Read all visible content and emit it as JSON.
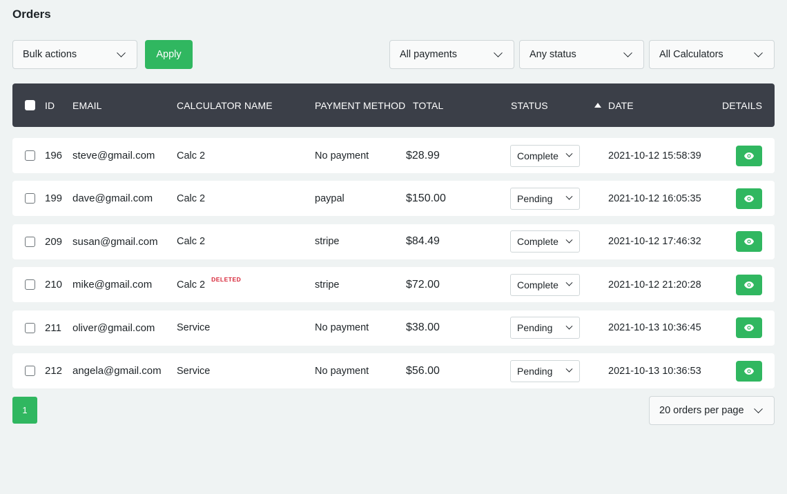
{
  "page": {
    "title": "Orders"
  },
  "toolbar": {
    "bulk_actions": "Bulk actions",
    "apply_label": "Apply",
    "payments_filter": "All payments",
    "status_filter": "Any status",
    "calculators_filter": "All Calculators"
  },
  "table": {
    "headers": {
      "id": "ID",
      "email": "EMAIL",
      "calculator": "CALCULATOR NAME",
      "payment": "PAYMENT METHOD",
      "total": "TOTAL",
      "status": "STATUS",
      "date": "DATE",
      "details": "DETAILS"
    },
    "rows": [
      {
        "id": "196",
        "email": "steve@gmail.com",
        "calculator": "Calc 2",
        "deleted": "",
        "payment": "No payment",
        "total": "$28.99",
        "status": "Complete",
        "date": "2021-10-12 15:58:39"
      },
      {
        "id": "199",
        "email": "dave@gmail.com",
        "calculator": "Calc 2",
        "deleted": "",
        "payment": "paypal",
        "total": "$150.00",
        "status": "Pending",
        "date": "2021-10-12 16:05:35"
      },
      {
        "id": "209",
        "email": "susan@gmail.com",
        "calculator": "Calc 2",
        "deleted": "",
        "payment": "stripe",
        "total": "$84.49",
        "status": "Complete",
        "date": "2021-10-12 17:46:32"
      },
      {
        "id": "210",
        "email": "mike@gmail.com",
        "calculator": "Calc 2",
        "deleted": "DELETED",
        "payment": "stripe",
        "total": "$72.00",
        "status": "Complete",
        "date": "2021-10-12 21:20:28"
      },
      {
        "id": "211",
        "email": "oliver@gmail.com",
        "calculator": "Service",
        "deleted": "",
        "payment": "No payment",
        "total": "$38.00",
        "status": "Pending",
        "date": "2021-10-13 10:36:45"
      },
      {
        "id": "212",
        "email": "angela@gmail.com",
        "calculator": "Service",
        "deleted": "",
        "payment": "No payment",
        "total": "$56.00",
        "status": "Pending",
        "date": "2021-10-13 10:36:53"
      }
    ]
  },
  "pagination": {
    "current_page": "1",
    "per_page_label": "20 orders per page"
  },
  "colors": {
    "accent": "#30b760",
    "header_bg": "#3b3f48",
    "deleted": "#d72638",
    "background": "#eff3f3"
  },
  "icons": {
    "details": "eye-icon",
    "dropdown": "chevron-down-icon",
    "sort": "sort-ascending-icon"
  }
}
